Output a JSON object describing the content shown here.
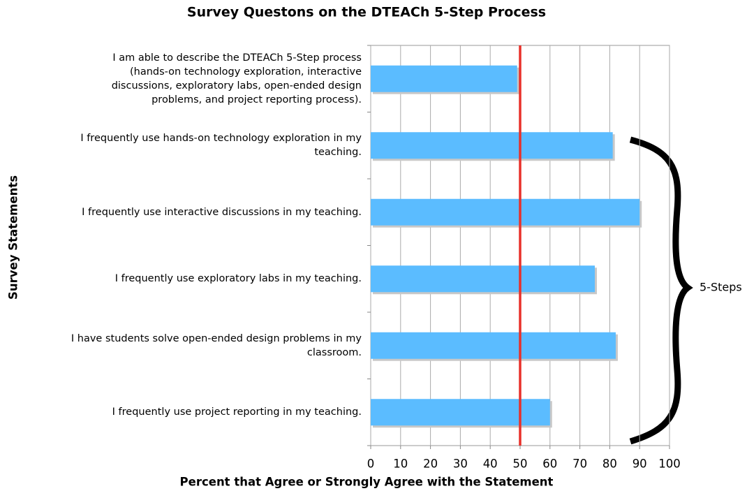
{
  "chart_data": {
    "type": "barh",
    "title": "Survey Questons on the DTEACh 5-Step Process",
    "x_label": "Percent that Agree or Strongly Agree with the Statement",
    "y_label": "Survey Statements",
    "categories": [
      "I am able to describe the DTEACh 5-Step process (hands-on technology exploration, interactive discussions, exploratory labs, open-ended design problems, and project reporting process).",
      "I frequently use hands-on technology exploration in my teaching.",
      "I frequently use interactive discussions in my teaching.",
      "I frequently use exploratory labs in my teaching.",
      "I have students solve open-ended design problems in my classroom.",
      "I frequently use project reporting in my teaching."
    ],
    "values": [
      49,
      81,
      90,
      75,
      82,
      60
    ],
    "color": "#5bbcff",
    "xlim": [
      0,
      100
    ],
    "xticks": [
      0,
      10,
      20,
      30,
      40,
      50,
      60,
      70,
      80,
      90,
      100
    ],
    "grid": true,
    "reference_line": {
      "value": 50,
      "color": "#e8302a"
    },
    "annotation": "5-Steps"
  }
}
